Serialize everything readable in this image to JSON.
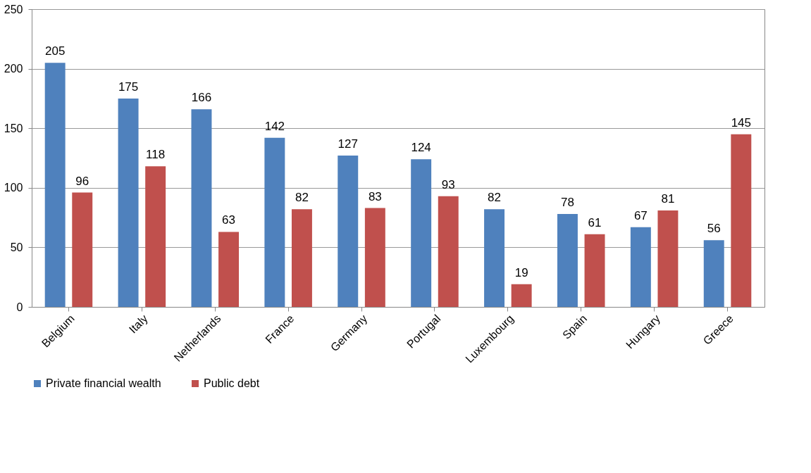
{
  "chart_data": {
    "type": "bar",
    "categories": [
      "Belgium",
      "Italy",
      "Netherlands",
      "France",
      "Germany",
      "Portugal",
      "Luxembourg",
      "Spain",
      "Hungary",
      "Greece"
    ],
    "series": [
      {
        "name": "Private financial wealth",
        "color": "#4f81bd",
        "values": [
          205,
          175,
          166,
          142,
          127,
          124,
          82,
          78,
          67,
          56
        ]
      },
      {
        "name": "Public debt",
        "color": "#c0504d",
        "values": [
          96,
          118,
          63,
          82,
          83,
          93,
          19,
          61,
          81,
          145
        ]
      }
    ],
    "ylim": [
      0,
      250
    ],
    "yticks": [
      0,
      50,
      100,
      150,
      200,
      250
    ],
    "grid": "y",
    "legend": "bottom",
    "data_labels": true
  }
}
